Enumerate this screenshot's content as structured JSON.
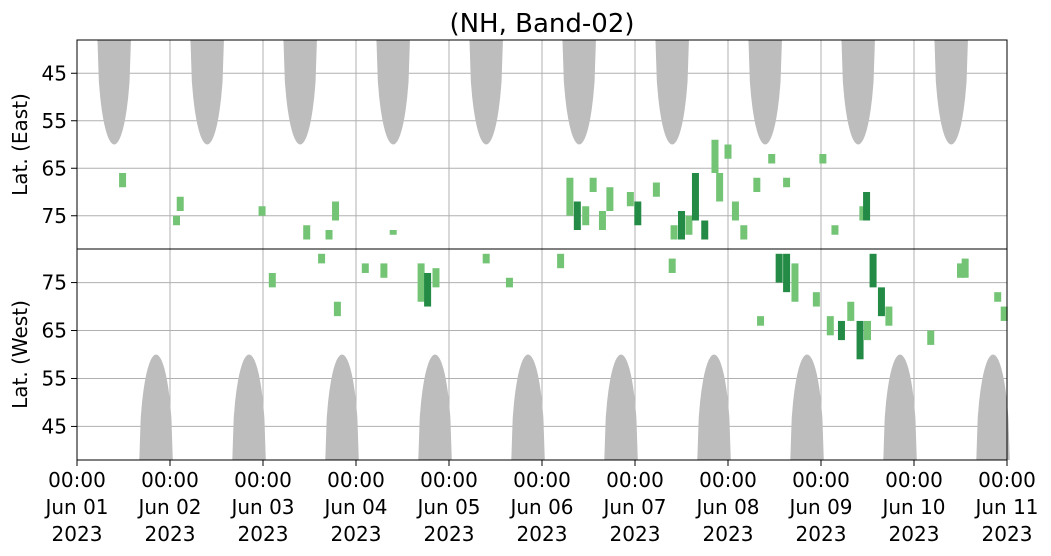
{
  "chart_data": {
    "type": "heatmap",
    "title": "(NH, Band-02)",
    "x_ticks": [
      {
        "line1": "00:00",
        "line2": "Jun 01",
        "line3": "2023",
        "day": 0
      },
      {
        "line1": "00:00",
        "line2": "Jun 02",
        "line3": "2023",
        "day": 1
      },
      {
        "line1": "00:00",
        "line2": "Jun 03",
        "line3": "2023",
        "day": 2
      },
      {
        "line1": "00:00",
        "line2": "Jun 04",
        "line3": "2023",
        "day": 3
      },
      {
        "line1": "00:00",
        "line2": "Jun 05",
        "line3": "2023",
        "day": 4
      },
      {
        "line1": "00:00",
        "line2": "Jun 06",
        "line3": "2023",
        "day": 5
      },
      {
        "line1": "00:00",
        "line2": "Jun 07",
        "line3": "2023",
        "day": 6
      },
      {
        "line1": "00:00",
        "line2": "Jun 08",
        "line3": "2023",
        "day": 7
      },
      {
        "line1": "00:00",
        "line2": "Jun 09",
        "line3": "2023",
        "day": 8
      },
      {
        "line1": "00:00",
        "line2": "Jun 10",
        "line3": "2023",
        "day": 9
      },
      {
        "line1": "00:00",
        "line2": "Jun 11",
        "line3": "2023",
        "day": 10
      }
    ],
    "xlim_days": [
      0,
      10
    ],
    "grid": true,
    "colors": {
      "no_data": "#bdbdbd",
      "low": "#74c476",
      "high": "#238b45",
      "grid": "#b0b0b0",
      "axes": "#000000"
    },
    "panels": [
      {
        "name": "east",
        "ylabel": "Lat. (East)",
        "ylim": [
          38,
          82
        ],
        "y_ticks": [
          "45",
          "55",
          "65",
          "75"
        ],
        "y_values": [
          45,
          55,
          65,
          75
        ],
        "no_data_lobes": [
          {
            "center_day": 0.4,
            "half_width_day": 0.18,
            "edge_lat": 60
          },
          {
            "center_day": 1.4,
            "half_width_day": 0.18,
            "edge_lat": 60
          },
          {
            "center_day": 2.4,
            "half_width_day": 0.18,
            "edge_lat": 60
          },
          {
            "center_day": 3.4,
            "half_width_day": 0.18,
            "edge_lat": 60
          },
          {
            "center_day": 4.4,
            "half_width_day": 0.18,
            "edge_lat": 60
          },
          {
            "center_day": 5.4,
            "half_width_day": 0.18,
            "edge_lat": 60
          },
          {
            "center_day": 6.4,
            "half_width_day": 0.18,
            "edge_lat": 60
          },
          {
            "center_day": 7.4,
            "half_width_day": 0.18,
            "edge_lat": 60
          },
          {
            "center_day": 8.4,
            "half_width_day": 0.18,
            "edge_lat": 60
          },
          {
            "center_day": 9.4,
            "half_width_day": 0.18,
            "edge_lat": 60
          }
        ],
        "activity": [
          {
            "day": 0.49,
            "lat_min": 66,
            "lat_max": 69,
            "intensity": "low"
          },
          {
            "day": 1.11,
            "lat_min": 71,
            "lat_max": 74,
            "intensity": "low"
          },
          {
            "day": 1.07,
            "lat_min": 75,
            "lat_max": 77,
            "intensity": "low"
          },
          {
            "day": 1.99,
            "lat_min": 73,
            "lat_max": 75,
            "intensity": "low"
          },
          {
            "day": 2.47,
            "lat_min": 77,
            "lat_max": 80,
            "intensity": "low"
          },
          {
            "day": 2.71,
            "lat_min": 78,
            "lat_max": 80,
            "intensity": "low"
          },
          {
            "day": 2.78,
            "lat_min": 72,
            "lat_max": 76,
            "intensity": "low"
          },
          {
            "day": 3.4,
            "lat_min": 78,
            "lat_max": 79,
            "intensity": "low"
          },
          {
            "day": 5.3,
            "lat_min": 67,
            "lat_max": 75,
            "intensity": "low"
          },
          {
            "day": 5.38,
            "lat_min": 72,
            "lat_max": 78,
            "intensity": "high"
          },
          {
            "day": 5.47,
            "lat_min": 73,
            "lat_max": 77,
            "intensity": "low"
          },
          {
            "day": 5.55,
            "lat_min": 67,
            "lat_max": 70,
            "intensity": "low"
          },
          {
            "day": 5.65,
            "lat_min": 74,
            "lat_max": 78,
            "intensity": "low"
          },
          {
            "day": 5.73,
            "lat_min": 69,
            "lat_max": 74,
            "intensity": "low"
          },
          {
            "day": 5.95,
            "lat_min": 70,
            "lat_max": 73,
            "intensity": "low"
          },
          {
            "day": 6.03,
            "lat_min": 72,
            "lat_max": 77,
            "intensity": "high"
          },
          {
            "day": 6.23,
            "lat_min": 68,
            "lat_max": 71,
            "intensity": "low"
          },
          {
            "day": 6.42,
            "lat_min": 77,
            "lat_max": 80,
            "intensity": "low"
          },
          {
            "day": 6.5,
            "lat_min": 74,
            "lat_max": 80,
            "intensity": "high"
          },
          {
            "day": 6.58,
            "lat_min": 75,
            "lat_max": 79,
            "intensity": "low"
          },
          {
            "day": 6.65,
            "lat_min": 66,
            "lat_max": 76,
            "intensity": "high"
          },
          {
            "day": 6.75,
            "lat_min": 76,
            "lat_max": 80,
            "intensity": "high"
          },
          {
            "day": 6.86,
            "lat_min": 59,
            "lat_max": 66,
            "intensity": "low"
          },
          {
            "day": 6.91,
            "lat_min": 66,
            "lat_max": 72,
            "intensity": "low"
          },
          {
            "day": 7.0,
            "lat_min": 60,
            "lat_max": 63,
            "intensity": "low"
          },
          {
            "day": 7.08,
            "lat_min": 72,
            "lat_max": 76,
            "intensity": "low"
          },
          {
            "day": 7.17,
            "lat_min": 77,
            "lat_max": 80,
            "intensity": "low"
          },
          {
            "day": 7.31,
            "lat_min": 67,
            "lat_max": 70,
            "intensity": "low"
          },
          {
            "day": 7.47,
            "lat_min": 62,
            "lat_max": 64,
            "intensity": "low"
          },
          {
            "day": 7.63,
            "lat_min": 67,
            "lat_max": 69,
            "intensity": "low"
          },
          {
            "day": 8.02,
            "lat_min": 62,
            "lat_max": 64,
            "intensity": "low"
          },
          {
            "day": 8.15,
            "lat_min": 77,
            "lat_max": 79,
            "intensity": "low"
          },
          {
            "day": 8.45,
            "lat_min": 73,
            "lat_max": 76,
            "intensity": "low"
          },
          {
            "day": 8.49,
            "lat_min": 70,
            "lat_max": 76,
            "intensity": "high"
          }
        ]
      },
      {
        "name": "west",
        "ylabel": "Lat. (West)",
        "ylim": [
          38,
          82
        ],
        "y_ticks": [
          "45",
          "55",
          "65",
          "75"
        ],
        "y_values": [
          45,
          55,
          65,
          75
        ],
        "no_data_lobes": [
          {
            "center_day": 0.85,
            "half_width_day": 0.18,
            "edge_lat": 60
          },
          {
            "center_day": 1.85,
            "half_width_day": 0.18,
            "edge_lat": 60
          },
          {
            "center_day": 2.85,
            "half_width_day": 0.18,
            "edge_lat": 60
          },
          {
            "center_day": 3.85,
            "half_width_day": 0.18,
            "edge_lat": 60
          },
          {
            "center_day": 4.85,
            "half_width_day": 0.18,
            "edge_lat": 60
          },
          {
            "center_day": 5.85,
            "half_width_day": 0.18,
            "edge_lat": 60
          },
          {
            "center_day": 6.85,
            "half_width_day": 0.18,
            "edge_lat": 60
          },
          {
            "center_day": 7.85,
            "half_width_day": 0.18,
            "edge_lat": 60
          },
          {
            "center_day": 8.85,
            "half_width_day": 0.18,
            "edge_lat": 60
          },
          {
            "center_day": 9.85,
            "half_width_day": 0.18,
            "edge_lat": 60
          }
        ],
        "activity": [
          {
            "day": 2.1,
            "lat_min": 74,
            "lat_max": 77,
            "intensity": "low"
          },
          {
            "day": 2.63,
            "lat_min": 79,
            "lat_max": 81,
            "intensity": "low"
          },
          {
            "day": 2.8,
            "lat_min": 68,
            "lat_max": 71,
            "intensity": "low"
          },
          {
            "day": 3.1,
            "lat_min": 77,
            "lat_max": 79,
            "intensity": "low"
          },
          {
            "day": 3.3,
            "lat_min": 76,
            "lat_max": 79,
            "intensity": "low"
          },
          {
            "day": 3.7,
            "lat_min": 71,
            "lat_max": 79,
            "intensity": "low"
          },
          {
            "day": 3.77,
            "lat_min": 70,
            "lat_max": 77,
            "intensity": "high"
          },
          {
            "day": 3.86,
            "lat_min": 74,
            "lat_max": 78,
            "intensity": "low"
          },
          {
            "day": 4.4,
            "lat_min": 79,
            "lat_max": 81,
            "intensity": "low"
          },
          {
            "day": 4.65,
            "lat_min": 74,
            "lat_max": 76,
            "intensity": "low"
          },
          {
            "day": 5.2,
            "lat_min": 78,
            "lat_max": 81,
            "intensity": "low"
          },
          {
            "day": 6.4,
            "lat_min": 77,
            "lat_max": 80,
            "intensity": "low"
          },
          {
            "day": 7.35,
            "lat_min": 66,
            "lat_max": 68,
            "intensity": "low"
          },
          {
            "day": 7.55,
            "lat_min": 75,
            "lat_max": 81,
            "intensity": "high"
          },
          {
            "day": 7.63,
            "lat_min": 73,
            "lat_max": 81,
            "intensity": "high"
          },
          {
            "day": 7.72,
            "lat_min": 71,
            "lat_max": 79,
            "intensity": "low"
          },
          {
            "day": 7.95,
            "lat_min": 70,
            "lat_max": 73,
            "intensity": "low"
          },
          {
            "day": 8.1,
            "lat_min": 64,
            "lat_max": 68,
            "intensity": "low"
          },
          {
            "day": 8.22,
            "lat_min": 63,
            "lat_max": 67,
            "intensity": "high"
          },
          {
            "day": 8.32,
            "lat_min": 67,
            "lat_max": 71,
            "intensity": "low"
          },
          {
            "day": 8.42,
            "lat_min": 59,
            "lat_max": 67,
            "intensity": "high"
          },
          {
            "day": 8.5,
            "lat_min": 63,
            "lat_max": 67,
            "intensity": "low"
          },
          {
            "day": 8.56,
            "lat_min": 74,
            "lat_max": 81,
            "intensity": "high"
          },
          {
            "day": 8.65,
            "lat_min": 68,
            "lat_max": 74,
            "intensity": "high"
          },
          {
            "day": 8.73,
            "lat_min": 66,
            "lat_max": 70,
            "intensity": "low"
          },
          {
            "day": 9.18,
            "lat_min": 62,
            "lat_max": 65,
            "intensity": "low"
          },
          {
            "day": 9.5,
            "lat_min": 76,
            "lat_max": 79,
            "intensity": "low"
          },
          {
            "day": 9.55,
            "lat_min": 76,
            "lat_max": 80,
            "intensity": "low"
          },
          {
            "day": 9.9,
            "lat_min": 71,
            "lat_max": 73,
            "intensity": "low"
          },
          {
            "day": 9.97,
            "lat_min": 67,
            "lat_max": 70,
            "intensity": "low"
          }
        ]
      }
    ]
  }
}
